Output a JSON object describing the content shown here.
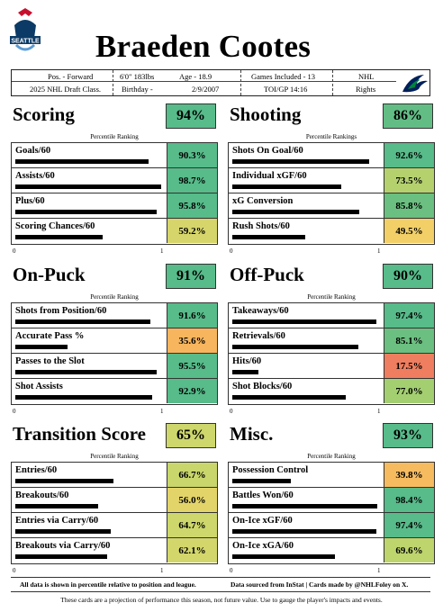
{
  "player": {
    "name": "Braeden Cootes",
    "position": "Pos. - Forward",
    "height_weight": "6'0\" 183lbs",
    "age": "Age - 18.9",
    "games": "Games Included - 13",
    "league": "NHL",
    "rights": "Rights",
    "draft_class": "2025 NHL Draft Class.",
    "birthday_label": "Birthday -",
    "birthday": "2/9/2007",
    "toi": "TOI/GP 14:16"
  },
  "logos": {
    "left": "seattle-thunderbirds-logo",
    "right": "vancouver-canucks-logo",
    "left_text": "SEATTLE"
  },
  "percentile_label": "Percentile Ranking",
  "percentile_label_alt": "Percentile Rankings",
  "axis": {
    "min": "0",
    "max": "1"
  },
  "colors": {
    "green": "#57bb8a",
    "light_green": "#9ccd6f",
    "yellow_green": "#c9d66b",
    "yellow": "#e6d26a",
    "orange": "#f7b55d",
    "red": "#ee7e5f"
  },
  "sections": [
    {
      "title": "Scoring",
      "score": "94%",
      "score_color": "#57bb8a",
      "sub": "Percentile Ranking",
      "metrics": [
        {
          "name": "Goals/60",
          "value": "90.3%",
          "fraction": 0.903,
          "color": "#57bb8a"
        },
        {
          "name": "Assists/60",
          "value": "98.7%",
          "fraction": 0.987,
          "color": "#57bb8a"
        },
        {
          "name": "Plus/60",
          "value": "95.8%",
          "fraction": 0.958,
          "color": "#57bb8a"
        },
        {
          "name": "Scoring Chances/60",
          "value": "59.2%",
          "fraction": 0.592,
          "color": "#d6d56b"
        }
      ]
    },
    {
      "title": "Shooting",
      "score": "86%",
      "score_color": "#62bd85",
      "sub": "Percentile Rankings",
      "metrics": [
        {
          "name": "Shots On Goal/60",
          "value": "92.6%",
          "fraction": 0.926,
          "color": "#57bb8a"
        },
        {
          "name": "Individual xGF/60",
          "value": "73.5%",
          "fraction": 0.735,
          "color": "#b4d16e"
        },
        {
          "name": "xG Conversion",
          "value": "85.8%",
          "fraction": 0.858,
          "color": "#6bbf80"
        },
        {
          "name": "Rush Shots/60",
          "value": "49.5%",
          "fraction": 0.495,
          "color": "#f2cf67"
        }
      ]
    },
    {
      "title": "On-Puck",
      "score": "91%",
      "score_color": "#57bb8a",
      "sub": "Percentile Ranking",
      "metrics": [
        {
          "name": "Shots from Position/60",
          "value": "91.6%",
          "fraction": 0.916,
          "color": "#57bb8a"
        },
        {
          "name": "Accurate Pass %",
          "value": "35.6%",
          "fraction": 0.356,
          "color": "#f7b55d"
        },
        {
          "name": "Passes to the Slot",
          "value": "95.5%",
          "fraction": 0.955,
          "color": "#57bb8a"
        },
        {
          "name": "Shot Assists",
          "value": "92.9%",
          "fraction": 0.929,
          "color": "#57bb8a"
        }
      ]
    },
    {
      "title": "Off-Puck",
      "score": "90%",
      "score_color": "#57bb8a",
      "sub": "Percentile Ranking",
      "metrics": [
        {
          "name": "Takeaways/60",
          "value": "97.4%",
          "fraction": 0.974,
          "color": "#57bb8a"
        },
        {
          "name": "Retrievals/60",
          "value": "85.1%",
          "fraction": 0.851,
          "color": "#6bbf80"
        },
        {
          "name": "Hits/60",
          "value": "17.5%",
          "fraction": 0.175,
          "color": "#ee7e5f"
        },
        {
          "name": "Shot Blocks/60",
          "value": "77.0%",
          "fraction": 0.77,
          "color": "#a3cf71"
        }
      ]
    },
    {
      "title": "Transition Score",
      "score": "65%",
      "score_color": "#cdd76b",
      "sub": "Percentile Ranking",
      "metrics": [
        {
          "name": "Entries/60",
          "value": "66.7%",
          "fraction": 0.667,
          "color": "#c9d66b"
        },
        {
          "name": "Breakouts/60",
          "value": "56.0%",
          "fraction": 0.56,
          "color": "#e3d46a"
        },
        {
          "name": "Entries via Carry/60",
          "value": "64.7%",
          "fraction": 0.647,
          "color": "#cdd76b"
        },
        {
          "name": "Breakouts via Carry/60",
          "value": "62.1%",
          "fraction": 0.621,
          "color": "#d3d66b"
        }
      ]
    },
    {
      "title": "Misc.",
      "score": "93%",
      "score_color": "#57bb8a",
      "sub": "Percentile Ranking",
      "metrics": [
        {
          "name": "Possession Control",
          "value": "39.8%",
          "fraction": 0.398,
          "color": "#f7bb5f"
        },
        {
          "name": "Battles Won/60",
          "value": "98.4%",
          "fraction": 0.984,
          "color": "#57bb8a"
        },
        {
          "name": "On-Ice xGF/60",
          "value": "97.4%",
          "fraction": 0.974,
          "color": "#57bb8a"
        },
        {
          "name": "On-Ice xGA/60",
          "value": "69.6%",
          "fraction": 0.696,
          "color": "#bed46d"
        }
      ]
    }
  ],
  "footer": {
    "left_note": "All data is shown in percentile relative to position and league.",
    "right_note": "Data sourced from InStat | Cards made by @NHLFoley on X.",
    "disclaimer": "These cards are a projection of performance this season, not future value. Use to gauge the player's impacts and events."
  }
}
